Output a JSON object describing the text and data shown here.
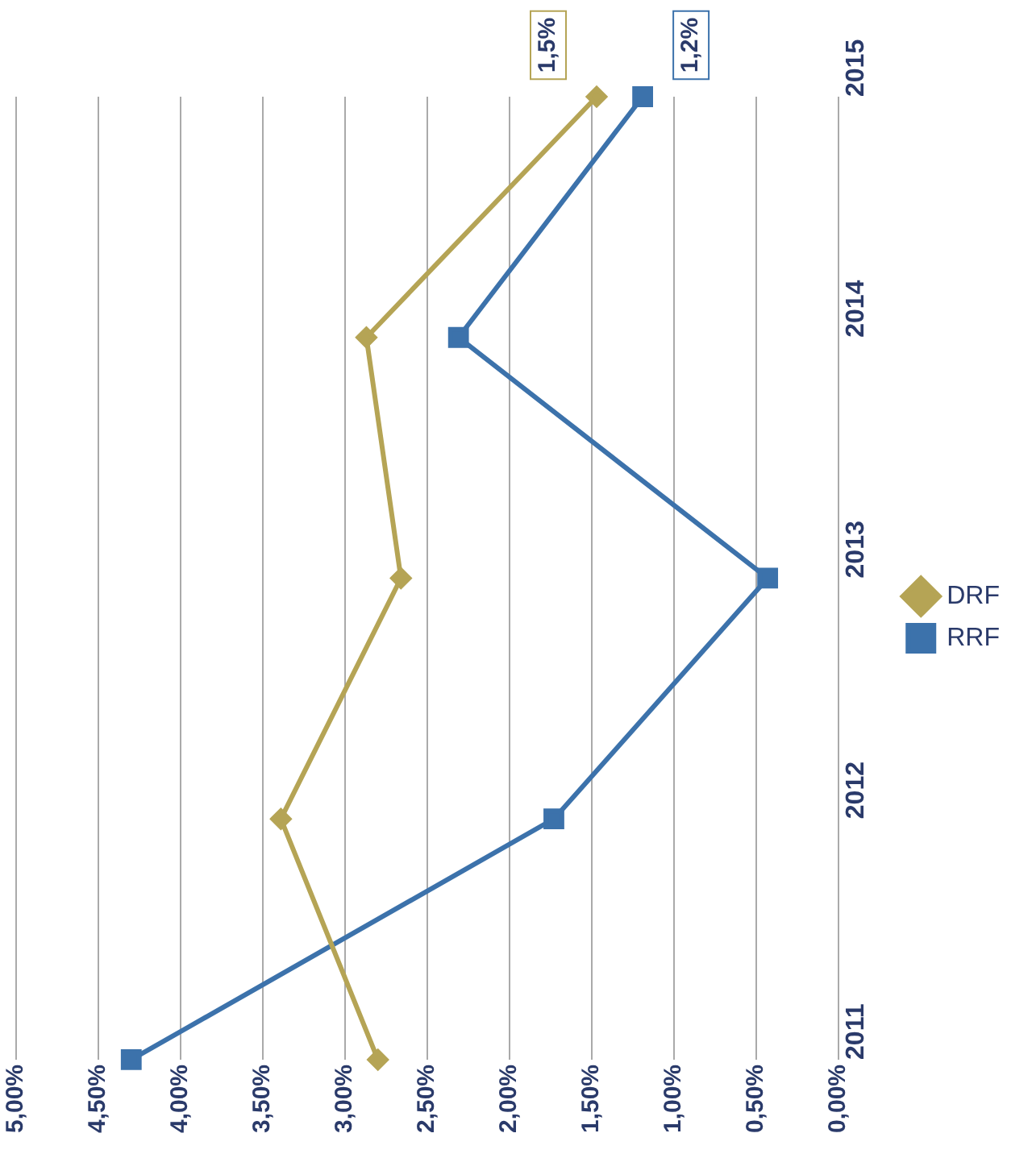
{
  "chart_data": {
    "type": "line",
    "orientation": "horizontal",
    "categories": [
      "2015",
      "2014",
      "2013",
      "2012",
      "2011"
    ],
    "series": [
      {
        "name": "DRF",
        "color": "#b5a455",
        "marker": "diamond",
        "values": [
          1.47,
          2.87,
          2.66,
          3.39,
          2.8
        ],
        "value_labels": [
          "1,5%",
          null,
          null,
          null,
          null
        ]
      },
      {
        "name": "RRF",
        "color": "#3c72ab",
        "marker": "square",
        "values": [
          1.19,
          2.31,
          0.43,
          1.73,
          4.3
        ],
        "value_labels": [
          "1,2%",
          null,
          null,
          null,
          null
        ]
      }
    ],
    "xlim": [
      5,
      0
    ],
    "xticks": [
      {
        "value": 5,
        "label": "5,00%"
      },
      {
        "value": 4.5,
        "label": "4,50%"
      },
      {
        "value": 4,
        "label": "4,00%"
      },
      {
        "value": 3.5,
        "label": "3,50%"
      },
      {
        "value": 3,
        "label": "3,00%"
      },
      {
        "value": 2.5,
        "label": "2,50%"
      },
      {
        "value": 2,
        "label": "2,00%"
      },
      {
        "value": 1.5,
        "label": "1,50%"
      },
      {
        "value": 1,
        "label": "1,00%"
      },
      {
        "value": 0.5,
        "label": "0,50%"
      },
      {
        "value": 0,
        "label": "0,00%"
      }
    ],
    "grid": "x",
    "legend": "right"
  }
}
